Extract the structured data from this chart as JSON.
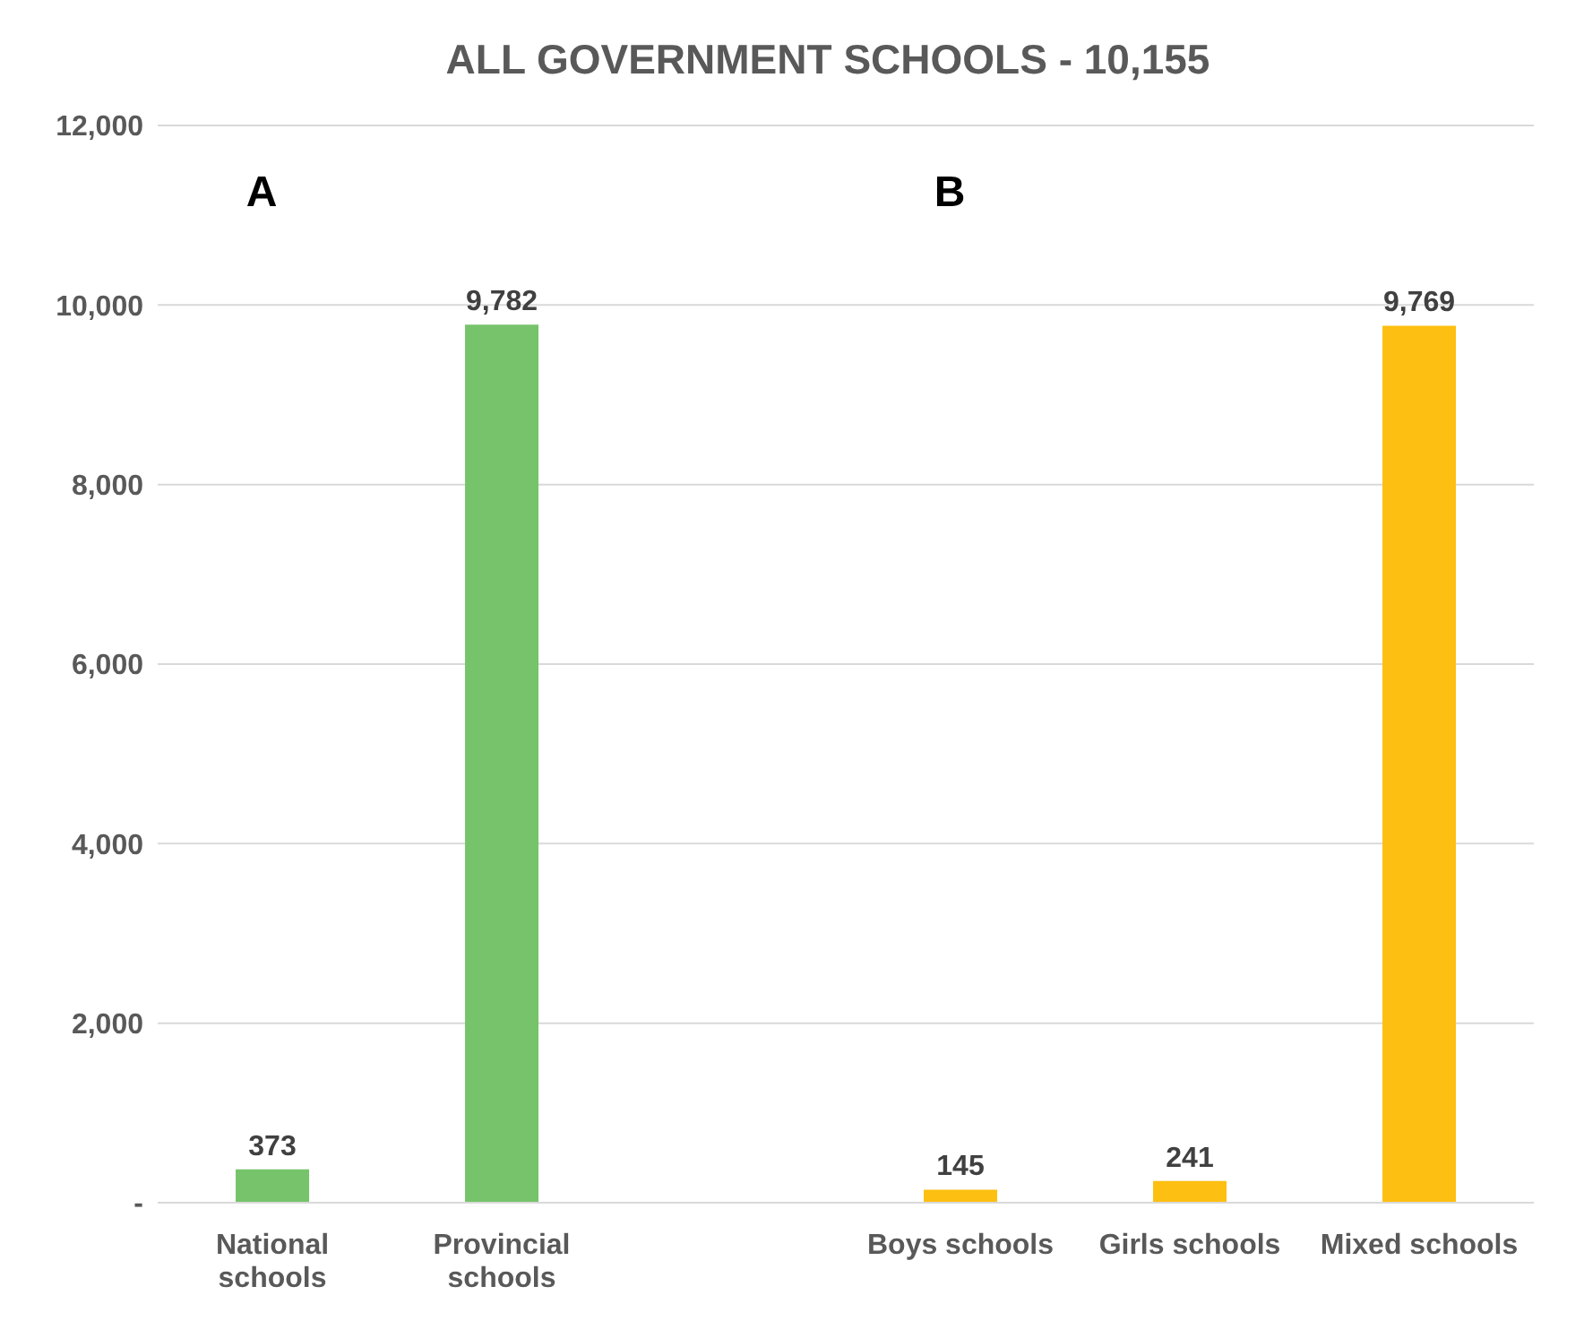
{
  "chart_data": {
    "type": "bar",
    "title": "ALL GOVERNMENT SCHOOLS - 10,155",
    "categories": [
      "National schools",
      "Provincial schools",
      null,
      "Boys schools",
      "Girls schools",
      "Mixed schools"
    ],
    "values": [
      373,
      9782,
      null,
      145,
      241,
      9769
    ],
    "value_labels": [
      "373",
      "9,782",
      null,
      "145",
      "241",
      "9,769"
    ],
    "colors": [
      "#77c36b",
      "#77c36b",
      null,
      "#fdbf11",
      "#fdbf11",
      "#fdbf11"
    ],
    "ylim": [
      0,
      12000
    ],
    "yticks": [
      {
        "value": 0,
        "label": "-"
      },
      {
        "value": 2000,
        "label": "2,000"
      },
      {
        "value": 4000,
        "label": "4,000"
      },
      {
        "value": 6000,
        "label": "6,000"
      },
      {
        "value": 8000,
        "label": "8,000"
      },
      {
        "value": 10000,
        "label": "10,000"
      },
      {
        "value": 12000,
        "label": "12,000"
      }
    ],
    "grid": "y",
    "annotations": [
      "A",
      "B"
    ]
  }
}
